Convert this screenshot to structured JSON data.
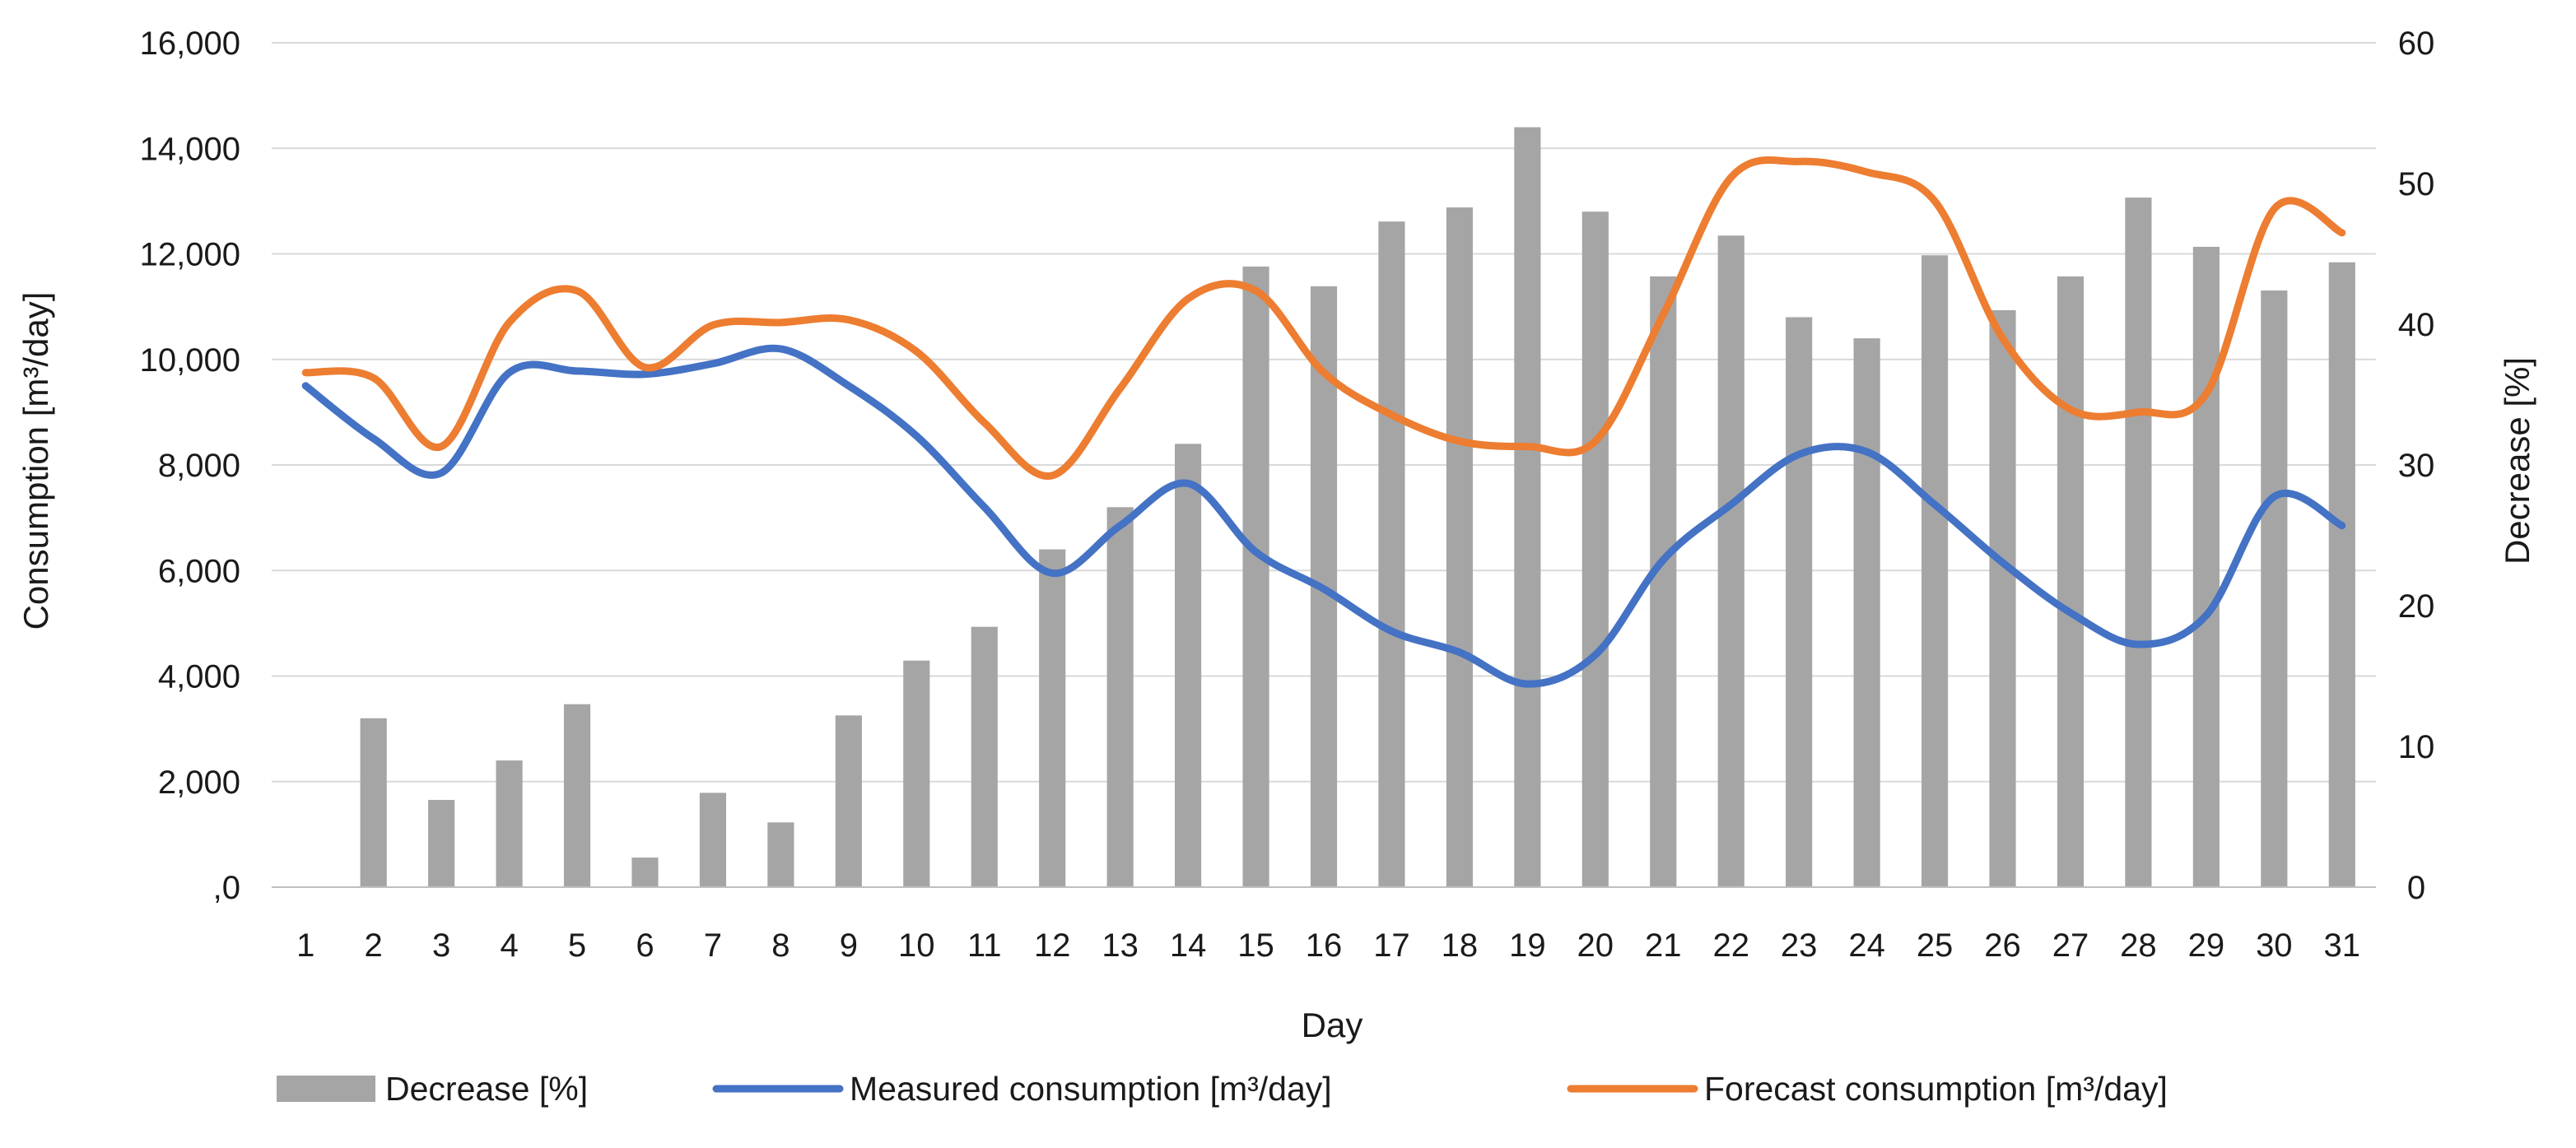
{
  "chart_data": {
    "type": "bar+line",
    "title": "",
    "xlabel": "Day",
    "ylabel_left": "Consumption [m³/day]",
    "ylabel_right": "Decrease [%]",
    "categories": [
      "1",
      "2",
      "3",
      "4",
      "5",
      "6",
      "7",
      "8",
      "9",
      "10",
      "11",
      "12",
      "13",
      "14",
      "15",
      "16",
      "17",
      "18",
      "19",
      "20",
      "21",
      "22",
      "23",
      "24",
      "25",
      "26",
      "27",
      "28",
      "29",
      "30",
      "31"
    ],
    "y_left": {
      "min": 0,
      "max": 16000,
      "step": 2000,
      "ticks": [
        ",0",
        "2,000",
        "4,000",
        "6,000",
        "8,000",
        "10,000",
        "12,000",
        "14,000",
        "16,000"
      ]
    },
    "y_right": {
      "min": 0,
      "max": 60,
      "step": 10,
      "ticks": [
        "0",
        "10",
        "20",
        "30",
        "40",
        "50",
        "60"
      ]
    },
    "grid": true,
    "legend_position": "bottom",
    "series": [
      {
        "name": "Decrease [%]",
        "type": "bar",
        "axis": "right",
        "color": "#a5a5a5",
        "values": [
          0,
          12.0,
          6.2,
          9.0,
          13.0,
          2.1,
          6.7,
          4.6,
          12.2,
          16.1,
          18.5,
          24.0,
          27.0,
          31.5,
          44.1,
          42.7,
          47.3,
          48.3,
          54.0,
          48.0,
          43.4,
          46.3,
          40.5,
          39.0,
          44.9,
          41.0,
          43.4,
          49.0,
          45.5,
          42.4,
          44.4
        ]
      },
      {
        "name": "Measured consumption [m³/day]",
        "type": "line",
        "axis": "left",
        "color": "#4472c4",
        "values": [
          9500,
          8500,
          7850,
          9750,
          9780,
          9720,
          9920,
          10200,
          9500,
          8550,
          7200,
          5950,
          6850,
          7650,
          6350,
          5650,
          4850,
          4450,
          3850,
          4400,
          6200,
          7250,
          8200,
          8250,
          7250,
          6150,
          5200,
          4600,
          5150,
          7400,
          6850
        ]
      },
      {
        "name": "Forecast consumption [m³/day]",
        "type": "line",
        "axis": "left",
        "color": "#ed7d31",
        "values": [
          9750,
          9650,
          8350,
          10700,
          11300,
          9850,
          10650,
          10700,
          10750,
          10150,
          8800,
          7800,
          9450,
          11150,
          11300,
          9750,
          8950,
          8450,
          8350,
          8450,
          10850,
          13450,
          13750,
          13550,
          13000,
          10400,
          9050,
          9000,
          9350,
          12850,
          12400
        ]
      }
    ]
  }
}
